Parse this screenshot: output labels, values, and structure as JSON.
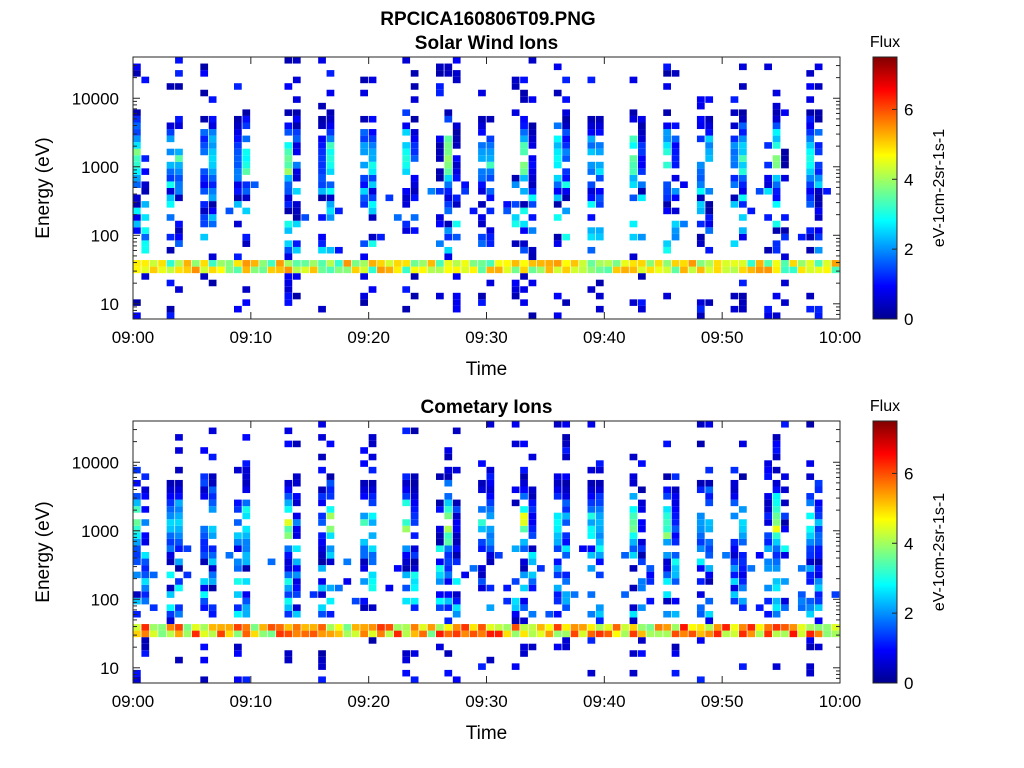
{
  "figure_title": "RPCICA160806T09.PNG",
  "colormap": [
    "#00008f",
    "#0000ff",
    "#0080ff",
    "#00ffff",
    "#80ff80",
    "#ffff00",
    "#ff8000",
    "#ff0000",
    "#800000"
  ],
  "chart_data": [
    {
      "type": "heatmap",
      "title": "Solar Wind Ions",
      "xlabel": "Time",
      "ylabel": "Energy (eV)",
      "x_ticks": [
        "09:00",
        "09:10",
        "09:20",
        "09:30",
        "09:40",
        "09:50",
        "10:00"
      ],
      "xlim": [
        "09:00",
        "10:00"
      ],
      "y_ticks": [
        "10",
        "100",
        "1000",
        "10000"
      ],
      "ylim": [
        6,
        40000
      ],
      "y_scale": "log",
      "colorbar": {
        "label": "Flux",
        "units": "eV-1cm-2sr-1s-1",
        "ticks": [
          "0",
          "2",
          "4",
          "6"
        ],
        "range": [
          0,
          7.5
        ]
      },
      "bursts_minutes": [
        0.5,
        3.6,
        6.5,
        9.4,
        13.3,
        16.6,
        20.0,
        23.4,
        26.8,
        30.0,
        33.3,
        36.3,
        39.3,
        42.6,
        45.5,
        48.6,
        51.5,
        54.6,
        57.7
      ],
      "peak_energy_ev": 1300,
      "low_energy_band_ev": [
        28,
        45
      ],
      "low_energy_band_flux": 4.8
    },
    {
      "type": "heatmap",
      "title": "Cometary Ions",
      "xlabel": "Time",
      "ylabel": "Energy (eV)",
      "x_ticks": [
        "09:00",
        "09:10",
        "09:20",
        "09:30",
        "09:40",
        "09:50",
        "10:00"
      ],
      "xlim": [
        "09:00",
        "10:00"
      ],
      "y_ticks": [
        "10",
        "100",
        "1000",
        "10000"
      ],
      "ylim": [
        6,
        40000
      ],
      "y_scale": "log",
      "colorbar": {
        "label": "Flux",
        "units": "eV-1cm-2sr-1s-1",
        "ticks": [
          "0",
          "2",
          "4",
          "6"
        ],
        "range": [
          0,
          7.5
        ]
      },
      "bursts_minutes": [
        0.5,
        3.6,
        6.5,
        9.4,
        13.3,
        16.6,
        20.0,
        23.4,
        26.8,
        30.0,
        33.3,
        36.3,
        39.3,
        42.6,
        45.5,
        48.6,
        51.5,
        54.6,
        57.7
      ],
      "peak_energy_ev": 1300,
      "low_energy_band_ev": [
        28,
        45
      ],
      "low_energy_band_flux": 5.6
    }
  ]
}
